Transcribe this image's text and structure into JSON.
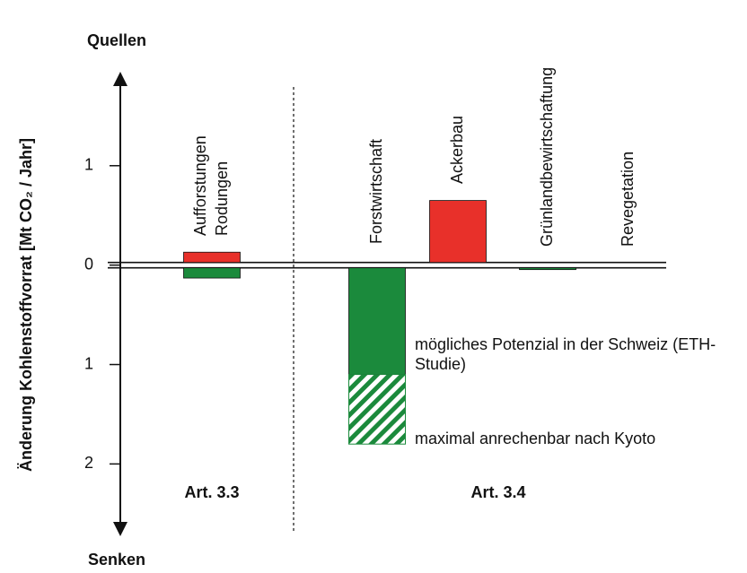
{
  "chart_data": {
    "type": "bar",
    "y_label": "Änderung Kohlenstoffvorrat [Mt CO₂ / Jahr]",
    "y_top_label": "Quellen",
    "y_bottom_label": "Senken",
    "categories": [
      [
        "Aufforstungen",
        "Rodungen"
      ],
      [
        "Forstwirtschaft"
      ],
      [
        "Ackerbau"
      ],
      [
        "Grünlandbewirtschaftung"
      ],
      [
        "Revegetation"
      ]
    ],
    "series": [
      {
        "color": "#e8302a",
        "values": [
          0.13,
          null,
          0.65,
          null,
          null
        ]
      },
      {
        "name": "mögliches Potenzial in der Schweiz (ETH-Studie)",
        "color": "#1b8a3c",
        "values": [
          -0.13,
          -1.1,
          null,
          -0.03,
          null
        ]
      },
      {
        "name": "maximal anrechenbar nach Kyoto",
        "color": "#1b8a3c",
        "hatch": true,
        "values": [
          null,
          -0.7,
          null,
          null,
          null
        ]
      }
    ],
    "groups": [
      "Art. 3.3",
      "Art. 3.4"
    ],
    "ylim": [
      -2.7,
      1.9
    ],
    "yticks": [
      1,
      0,
      {
        "value": -1,
        "label": "1"
      },
      {
        "value": -2,
        "label": "2"
      }
    ]
  }
}
